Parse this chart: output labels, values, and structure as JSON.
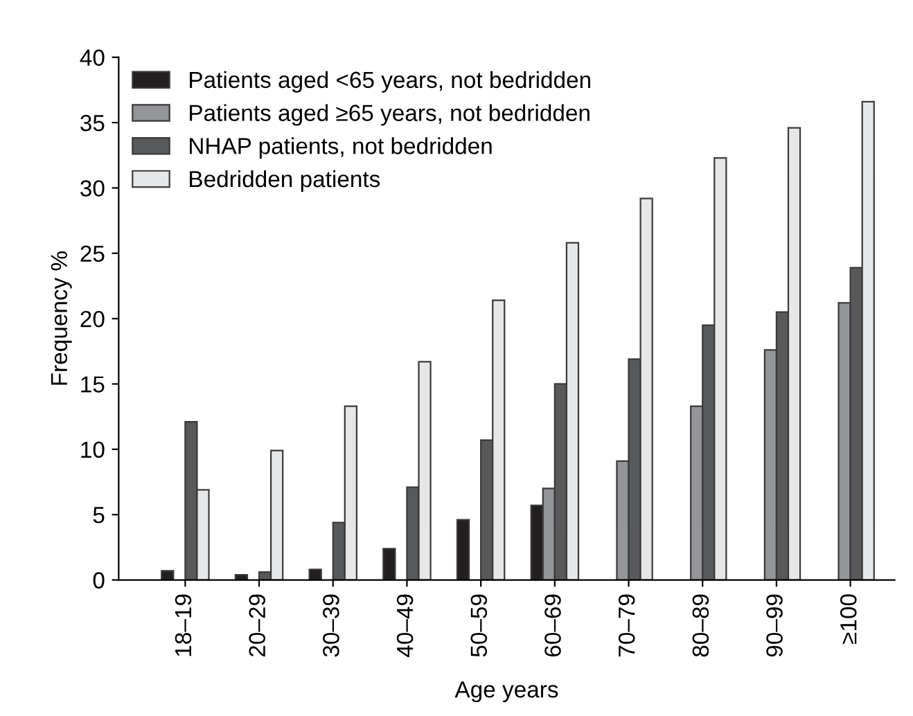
{
  "chart_data": {
    "type": "bar",
    "xlabel": "Age years",
    "ylabel": "Frequency %",
    "categories": [
      "18–19",
      "20–29",
      "30–39",
      "40–49",
      "50–59",
      "60–69",
      "70–79",
      "80–89",
      "90–99",
      "≥100"
    ],
    "series": [
      {
        "name": "Patients aged <65 years, not bedridden",
        "color": "#231f20",
        "values": [
          0.7,
          0.4,
          0.8,
          2.4,
          4.6,
          5.7,
          null,
          null,
          null,
          null
        ]
      },
      {
        "name": "Patients aged ≥65 years, not bedridden",
        "color": "#939598",
        "values": [
          null,
          null,
          null,
          null,
          null,
          7.0,
          9.1,
          13.3,
          17.6,
          21.2
        ]
      },
      {
        "name": "NHAP patients, not bedridden",
        "color": "#58595b",
        "values": [
          12.1,
          0.6,
          4.4,
          7.1,
          10.7,
          15.0,
          16.9,
          19.5,
          20.5,
          23.9
        ]
      },
      {
        "name": "Bedridden patients",
        "color": "#e6e7e8",
        "values": [
          6.9,
          9.9,
          13.3,
          16.7,
          21.4,
          25.8,
          29.2,
          32.3,
          34.6,
          36.6
        ]
      }
    ],
    "ylim": [
      0,
      40
    ],
    "yticks": [
      0,
      5,
      10,
      15,
      20,
      25,
      30,
      35,
      40
    ],
    "grid": false,
    "legend": "top left"
  }
}
